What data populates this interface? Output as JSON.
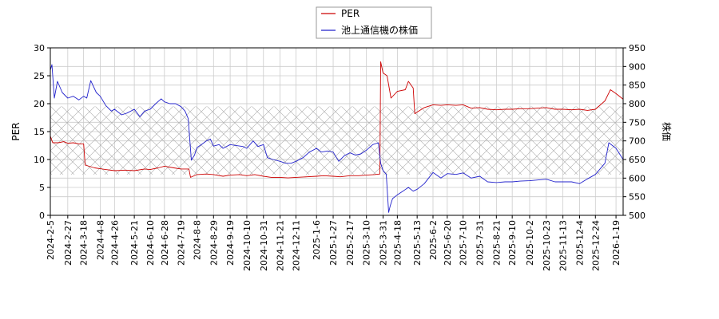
{
  "chart_data": {
    "type": "line",
    "title": "",
    "legend": {
      "placement": "top-center",
      "entries": [
        {
          "name": "PER",
          "color": "#cc0000"
        },
        {
          "name": "池上通信機の株価",
          "color": "#2222cc"
        }
      ]
    },
    "y_left": {
      "label": "PER",
      "range": [
        0,
        30
      ],
      "ticks": [
        0,
        5,
        10,
        15,
        20,
        25,
        30
      ]
    },
    "y_right": {
      "label": "株価",
      "range": [
        500,
        950
      ],
      "ticks": [
        500,
        550,
        600,
        650,
        700,
        750,
        800,
        850,
        900,
        950
      ]
    },
    "x": {
      "range": [
        "2024-02-05",
        "2026-01-28"
      ],
      "tick_labels": [
        "2024-2-5",
        "2024-2-27",
        "2024-3-18",
        "2024-4-8",
        "2024-4-26",
        "2024-5-21",
        "2024-6-10",
        "2024-6-28",
        "2024-7-19",
        "2024-8-8",
        "2024-8-29",
        "2024-9-19",
        "2024-10-10",
        "2024-10-31",
        "2024-11-21",
        "2024-12-11",
        "2025-1-6",
        "2025-1-27",
        "2025-2-17",
        "2025-3-10",
        "2025-3-31",
        "2025-4-18",
        "2025-5-13",
        "2025-6-2",
        "2025-6-20",
        "2025-7-10",
        "2025-7-31",
        "2025-8-21",
        "2025-9-10",
        "2025-10-2",
        "2025-10-23",
        "2025-11-13",
        "2025-12-4",
        "2025-12-24",
        "2026-1-19"
      ],
      "tick_dates": [
        "2024-02-05",
        "2024-02-27",
        "2024-03-18",
        "2024-04-08",
        "2024-04-26",
        "2024-05-21",
        "2024-06-10",
        "2024-06-28",
        "2024-07-19",
        "2024-08-08",
        "2024-08-29",
        "2024-09-19",
        "2024-10-10",
        "2024-10-31",
        "2024-11-21",
        "2024-12-11",
        "2025-01-06",
        "2025-01-27",
        "2025-02-17",
        "2025-03-10",
        "2025-03-31",
        "2025-04-18",
        "2025-05-13",
        "2025-06-02",
        "2025-06-20",
        "2025-07-10",
        "2025-07-31",
        "2025-08-21",
        "2025-09-10",
        "2025-10-02",
        "2025-10-23",
        "2025-11-13",
        "2025-12-04",
        "2025-12-24",
        "2026-01-19"
      ]
    },
    "grid": true,
    "band": {
      "range": [
        7.3,
        19.5
      ],
      "pattern": "crosshatch"
    },
    "series": [
      {
        "name": "PER",
        "axis": "left",
        "color": "#cc0000",
        "points": [
          [
            "2024-02-05",
            14.2
          ],
          [
            "2024-02-08",
            13.0
          ],
          [
            "2024-02-15",
            13.0
          ],
          [
            "2024-02-22",
            13.2
          ],
          [
            "2024-02-27",
            12.9
          ],
          [
            "2024-03-05",
            13.0
          ],
          [
            "2024-03-12",
            12.8
          ],
          [
            "2024-03-18",
            12.8
          ],
          [
            "2024-03-20",
            9.0
          ],
          [
            "2024-04-01",
            8.5
          ],
          [
            "2024-04-15",
            8.2
          ],
          [
            "2024-04-26",
            8.0
          ],
          [
            "2024-05-10",
            8.1
          ],
          [
            "2024-05-21",
            8.0
          ],
          [
            "2024-06-03",
            8.3
          ],
          [
            "2024-06-10",
            8.2
          ],
          [
            "2024-06-20",
            8.5
          ],
          [
            "2024-06-28",
            8.8
          ],
          [
            "2024-07-10",
            8.5
          ],
          [
            "2024-07-19",
            8.3
          ],
          [
            "2024-07-29",
            8.3
          ],
          [
            "2024-07-31",
            6.8
          ],
          [
            "2024-08-08",
            7.3
          ],
          [
            "2024-08-20",
            7.4
          ],
          [
            "2024-08-29",
            7.3
          ],
          [
            "2024-09-10",
            7.0
          ],
          [
            "2024-09-19",
            7.2
          ],
          [
            "2024-10-01",
            7.3
          ],
          [
            "2024-10-10",
            7.1
          ],
          [
            "2024-10-20",
            7.3
          ],
          [
            "2024-10-31",
            7.0
          ],
          [
            "2024-11-10",
            6.8
          ],
          [
            "2024-11-21",
            6.8
          ],
          [
            "2024-12-01",
            6.7
          ],
          [
            "2024-12-11",
            6.8
          ],
          [
            "2024-12-25",
            6.9
          ],
          [
            "2025-01-06",
            7.0
          ],
          [
            "2025-01-15",
            7.1
          ],
          [
            "2025-01-27",
            7.0
          ],
          [
            "2025-02-05",
            6.9
          ],
          [
            "2025-02-17",
            7.1
          ],
          [
            "2025-02-28",
            7.1
          ],
          [
            "2025-03-10",
            7.2
          ],
          [
            "2025-03-20",
            7.3
          ],
          [
            "2025-03-27",
            7.4
          ],
          [
            "2025-03-28",
            27.5
          ],
          [
            "2025-03-31",
            25.5
          ],
          [
            "2025-04-05",
            25.0
          ],
          [
            "2025-04-10",
            21.0
          ],
          [
            "2025-04-18",
            22.2
          ],
          [
            "2025-04-28",
            22.5
          ],
          [
            "2025-05-02",
            24.0
          ],
          [
            "2025-05-08",
            22.8
          ],
          [
            "2025-05-10",
            18.2
          ],
          [
            "2025-05-13",
            18.5
          ],
          [
            "2025-05-22",
            19.3
          ],
          [
            "2025-06-02",
            19.8
          ],
          [
            "2025-06-12",
            19.7
          ],
          [
            "2025-06-20",
            19.8
          ],
          [
            "2025-07-01",
            19.7
          ],
          [
            "2025-07-10",
            19.8
          ],
          [
            "2025-07-20",
            19.2
          ],
          [
            "2025-07-31",
            19.3
          ],
          [
            "2025-08-10",
            19.0
          ],
          [
            "2025-08-21",
            18.9
          ],
          [
            "2025-09-01",
            19.0
          ],
          [
            "2025-09-10",
            19.0
          ],
          [
            "2025-09-20",
            19.1
          ],
          [
            "2025-10-02",
            19.1
          ],
          [
            "2025-10-12",
            19.2
          ],
          [
            "2025-10-23",
            19.3
          ],
          [
            "2025-11-03",
            19.0
          ],
          [
            "2025-11-13",
            19.0
          ],
          [
            "2025-11-24",
            18.9
          ],
          [
            "2025-12-04",
            19.0
          ],
          [
            "2025-12-14",
            18.8
          ],
          [
            "2025-12-24",
            19.0
          ],
          [
            "2026-01-05",
            20.5
          ],
          [
            "2026-01-12",
            22.5
          ],
          [
            "2026-01-19",
            21.8
          ],
          [
            "2026-01-28",
            20.8
          ]
        ]
      },
      {
        "name": "池上通信機の株価",
        "axis": "right",
        "color": "#2222cc",
        "points": [
          [
            "2024-02-05",
            890
          ],
          [
            "2024-02-07",
            905
          ],
          [
            "2024-02-10",
            815
          ],
          [
            "2024-02-14",
            860
          ],
          [
            "2024-02-20",
            830
          ],
          [
            "2024-02-27",
            815
          ],
          [
            "2024-03-05",
            820
          ],
          [
            "2024-03-12",
            810
          ],
          [
            "2024-03-18",
            820
          ],
          [
            "2024-03-22",
            815
          ],
          [
            "2024-03-27",
            862
          ],
          [
            "2024-04-03",
            830
          ],
          [
            "2024-04-08",
            820
          ],
          [
            "2024-04-15",
            795
          ],
          [
            "2024-04-22",
            780
          ],
          [
            "2024-04-26",
            785
          ],
          [
            "2024-05-05",
            770
          ],
          [
            "2024-05-12",
            775
          ],
          [
            "2024-05-21",
            785
          ],
          [
            "2024-05-28",
            765
          ],
          [
            "2024-06-03",
            780
          ],
          [
            "2024-06-10",
            785
          ],
          [
            "2024-06-17",
            800
          ],
          [
            "2024-06-24",
            813
          ],
          [
            "2024-06-28",
            805
          ],
          [
            "2024-07-05",
            800
          ],
          [
            "2024-07-12",
            800
          ],
          [
            "2024-07-19",
            792
          ],
          [
            "2024-07-24",
            780
          ],
          [
            "2024-07-28",
            760
          ],
          [
            "2024-08-01",
            648
          ],
          [
            "2024-08-05",
            662
          ],
          [
            "2024-08-08",
            682
          ],
          [
            "2024-08-15",
            692
          ],
          [
            "2024-08-20",
            700
          ],
          [
            "2024-08-25",
            705
          ],
          [
            "2024-08-29",
            686
          ],
          [
            "2024-09-05",
            690
          ],
          [
            "2024-09-10",
            680
          ],
          [
            "2024-09-19",
            690
          ],
          [
            "2024-09-28",
            687
          ],
          [
            "2024-10-05",
            685
          ],
          [
            "2024-10-10",
            680
          ],
          [
            "2024-10-18",
            700
          ],
          [
            "2024-10-24",
            685
          ],
          [
            "2024-10-31",
            690
          ],
          [
            "2024-11-05",
            655
          ],
          [
            "2024-11-12",
            650
          ],
          [
            "2024-11-21",
            645
          ],
          [
            "2024-11-28",
            640
          ],
          [
            "2024-12-05",
            640
          ],
          [
            "2024-12-11",
            645
          ],
          [
            "2024-12-20",
            655
          ],
          [
            "2024-12-28",
            670
          ],
          [
            "2025-01-06",
            680
          ],
          [
            "2025-01-12",
            670
          ],
          [
            "2025-01-20",
            673
          ],
          [
            "2025-01-27",
            670
          ],
          [
            "2025-02-03",
            645
          ],
          [
            "2025-02-10",
            660
          ],
          [
            "2025-02-17",
            668
          ],
          [
            "2025-02-24",
            662
          ],
          [
            "2025-03-03",
            665
          ],
          [
            "2025-03-10",
            675
          ],
          [
            "2025-03-18",
            690
          ],
          [
            "2025-03-25",
            695
          ],
          [
            "2025-03-28",
            640
          ],
          [
            "2025-03-31",
            620
          ],
          [
            "2025-04-04",
            610
          ],
          [
            "2025-04-07",
            508
          ],
          [
            "2025-04-09",
            525
          ],
          [
            "2025-04-12",
            545
          ],
          [
            "2025-04-18",
            555
          ],
          [
            "2025-04-25",
            565
          ],
          [
            "2025-05-02",
            575
          ],
          [
            "2025-05-08",
            565
          ],
          [
            "2025-05-13",
            570
          ],
          [
            "2025-05-22",
            585
          ],
          [
            "2025-06-02",
            615
          ],
          [
            "2025-06-12",
            600
          ],
          [
            "2025-06-20",
            612
          ],
          [
            "2025-07-01",
            610
          ],
          [
            "2025-07-10",
            614
          ],
          [
            "2025-07-20",
            600
          ],
          [
            "2025-07-31",
            605
          ],
          [
            "2025-08-10",
            590
          ],
          [
            "2025-08-21",
            588
          ],
          [
            "2025-09-01",
            590
          ],
          [
            "2025-09-10",
            590
          ],
          [
            "2025-09-20",
            592
          ],
          [
            "2025-10-02",
            593
          ],
          [
            "2025-10-12",
            595
          ],
          [
            "2025-10-23",
            597
          ],
          [
            "2025-11-03",
            590
          ],
          [
            "2025-11-13",
            590
          ],
          [
            "2025-11-24",
            590
          ],
          [
            "2025-12-04",
            585
          ],
          [
            "2025-12-14",
            598
          ],
          [
            "2025-12-24",
            610
          ],
          [
            "2026-01-05",
            640
          ],
          [
            "2026-01-10",
            695
          ],
          [
            "2026-01-19",
            680
          ],
          [
            "2026-01-28",
            650
          ]
        ]
      }
    ]
  }
}
